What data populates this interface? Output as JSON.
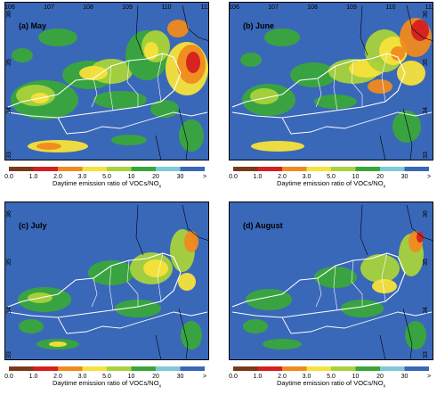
{
  "panels": [
    {
      "id": "may",
      "label": "(a) May",
      "lon_ticks_top": [
        "106",
        "107",
        "108",
        "109",
        "110",
        "111"
      ],
      "lat_ticks": [
        "36",
        "35",
        "34",
        "33"
      ],
      "lat_side": "left"
    },
    {
      "id": "june",
      "label": "(b) June",
      "lon_ticks_top": [
        "106",
        "107",
        "108",
        "109",
        "110",
        "111"
      ],
      "lat_ticks": [
        "36",
        "35",
        "34",
        "33"
      ],
      "lat_side": "right"
    },
    {
      "id": "july",
      "label": "(c) July",
      "lon_ticks_top": [],
      "lat_ticks": [
        "36",
        "35",
        "34",
        "33"
      ],
      "lat_side": "left"
    },
    {
      "id": "august",
      "label": "(d) August",
      "lon_ticks_top": [],
      "lat_ticks": [
        "36",
        "35",
        "34",
        "33"
      ],
      "lat_side": "right"
    }
  ],
  "colorbar": {
    "labels": [
      "0.0",
      "1.0",
      "2.0",
      "3.0",
      "5.0",
      "10",
      "20",
      "30",
      ">"
    ],
    "colors": [
      "#7a3a1a",
      "#d42020",
      "#f08a1e",
      "#f5e23a",
      "#a8d23a",
      "#3aa63a",
      "#7fc8d8",
      "#3a68b8"
    ],
    "caption_prefix": "Daytime emission ratio of VOCs/NO",
    "caption_sub": "x"
  },
  "colors": {
    "background_blue": "#3a68b8",
    "green": "#3aa63a",
    "light_green": "#a8d23a",
    "yellow": "#f5e23a",
    "orange": "#f08a1e",
    "red": "#d42020",
    "boundary_white": "#ffffff",
    "boundary_black": "#000000"
  }
}
